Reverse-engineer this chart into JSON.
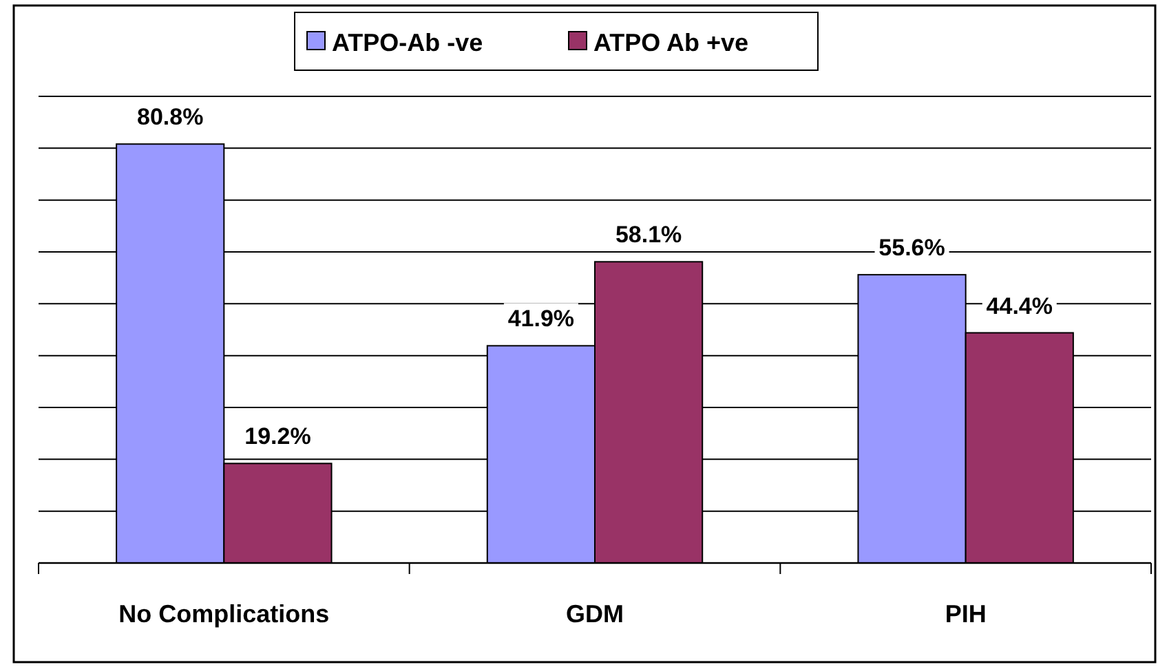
{
  "chart_data": {
    "type": "bar",
    "categories": [
      "No Complications",
      "GDM",
      "PIH"
    ],
    "series": [
      {
        "name": "ATPO-Ab -ve",
        "color": "#9999ff",
        "values": [
          80.8,
          41.9,
          55.6
        ],
        "value_labels": [
          "80.8%",
          "41.9%",
          "55.6%"
        ]
      },
      {
        "name": "ATPO Ab +ve",
        "color": "#993366",
        "values": [
          19.2,
          58.1,
          44.4
        ],
        "value_labels": [
          "19.2%",
          "58.1%",
          "44.4%"
        ]
      }
    ],
    "ylim": [
      0,
      90
    ],
    "yticks": [
      {
        "value": 0,
        "label": null
      },
      {
        "value": 10,
        "label": null
      },
      {
        "value": 20,
        "label": null
      },
      {
        "value": 30,
        "label": null
      },
      {
        "value": 40,
        "label": null
      },
      {
        "value": 50,
        "label": null
      },
      {
        "value": 60,
        "label": null
      },
      {
        "value": 70,
        "label": null
      },
      {
        "value": 80,
        "label": null
      },
      {
        "value": 90,
        "label": null
      }
    ],
    "tick_labels": "x",
    "grid": "y",
    "legend": "top"
  }
}
